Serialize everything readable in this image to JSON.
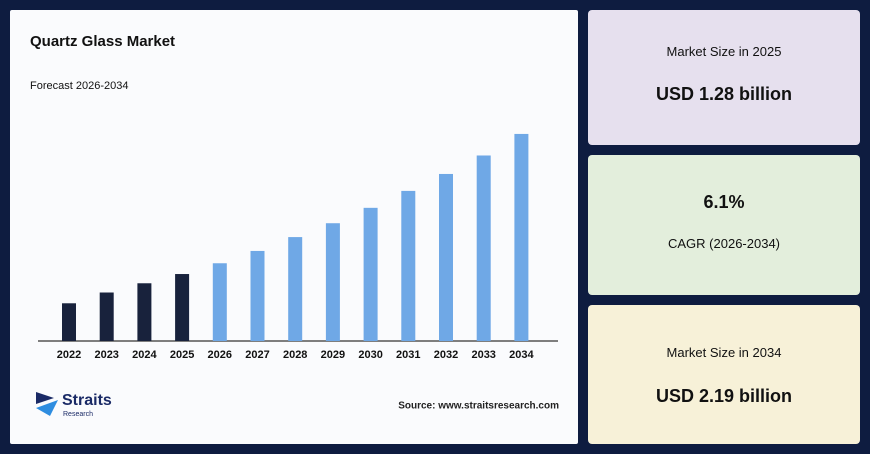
{
  "chart_data": {
    "type": "bar",
    "title": "Quartz Glass Market",
    "subtitle": "Forecast 2026-2034",
    "categories": [
      "2022",
      "2023",
      "2024",
      "2025",
      "2026",
      "2027",
      "2028",
      "2029",
      "2030",
      "2031",
      "2032",
      "2033",
      "2034"
    ],
    "values": [
      1.09,
      1.16,
      1.22,
      1.28,
      1.35,
      1.43,
      1.52,
      1.61,
      1.71,
      1.82,
      1.93,
      2.05,
      2.19
    ],
    "colors": [
      "#18223c",
      "#18223c",
      "#18223c",
      "#18223c",
      "#6fa8e6",
      "#6fa8e6",
      "#6fa8e6",
      "#6fa8e6",
      "#6fa8e6",
      "#6fa8e6",
      "#6fa8e6",
      "#6fa8e6",
      "#6fa8e6"
    ],
    "ylim": [
      0.845,
      2.3
    ]
  },
  "cards": [
    {
      "label": "Market Size in 2025",
      "value": "USD 1.28 billion"
    },
    {
      "label": "CAGR (2026-2034)",
      "value": "6.1%"
    },
    {
      "label": "Market Size in 2034",
      "value": "USD 2.19 billion"
    }
  ],
  "brand": {
    "name": "Straits",
    "sub": "Research"
  },
  "source": "Source: www.straitsresearch.com"
}
